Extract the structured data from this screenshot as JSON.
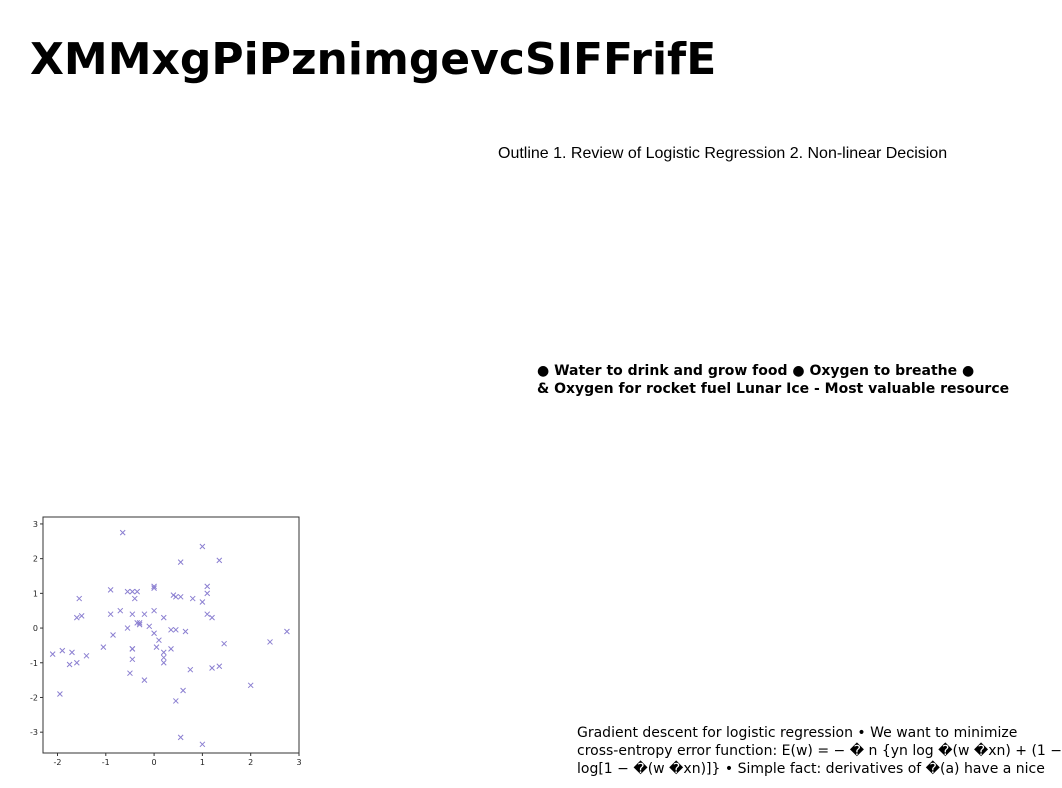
{
  "title": "XMMxgPiPznimgevcSIFFrifE",
  "outline_text": "Outline 1. Review of Logistic Regression 2. Non-linear Decision",
  "lunar_text": {
    "line1": "● Water to drink and grow food ● Oxygen to breathe ●",
    "line2": "& Oxygen for rocket fuel Lunar Ice - Most valuable resource"
  },
  "gradient_text": {
    "line1": "Gradient descent for logistic regression • We want to minimize",
    "line2": "cross-entropy error function: E(w) = − � n {yn log �(w �xn) + (1 −",
    "line3": "log[1 − �(w �xn)]} • Simple fact: derivatives of �(a) have a nice"
  },
  "chart_data": {
    "type": "scatter",
    "marker": "x",
    "color": "#8b7fd1",
    "xlim": [
      -2.3,
      3.0
    ],
    "ylim": [
      -3.6,
      3.2
    ],
    "xticks": [
      "-2",
      "-1",
      "0",
      "1",
      "2",
      "3"
    ],
    "yticks": [
      "3",
      "2",
      "1",
      "0",
      "-1",
      "-2",
      "-3"
    ],
    "x": [
      -0.65,
      1.0,
      0.55,
      1.35,
      -1.55,
      -0.9,
      -0.55,
      -0.45,
      -0.35,
      0.0,
      0.0,
      0.4,
      0.45,
      0.55,
      0.8,
      1.1,
      1.1,
      -0.4,
      -0.7,
      -0.55,
      -0.3,
      0.0,
      0.2,
      1.0,
      1.1,
      1.2,
      -1.6,
      -1.5,
      -0.9,
      -0.45,
      -0.35,
      -0.2,
      -0.1,
      0.0,
      0.35,
      0.45,
      0.65,
      -0.45,
      -0.3,
      -0.85,
      -1.05,
      -1.4,
      -1.7,
      -1.9,
      -2.1,
      -1.6,
      -1.75,
      0.05,
      0.1,
      0.2,
      0.35,
      0.2,
      0.2,
      0.75,
      1.45,
      1.2,
      1.35,
      2.4,
      2.75,
      -0.45,
      -0.45,
      -0.5,
      -0.2,
      -1.95,
      0.6,
      2.0,
      0.45,
      0.55,
      1.0
    ],
    "y": [
      2.75,
      2.35,
      1.9,
      1.95,
      0.85,
      1.1,
      1.05,
      1.05,
      1.05,
      1.2,
      1.15,
      0.95,
      0.9,
      0.9,
      0.85,
      1.0,
      1.2,
      0.85,
      0.5,
      0.0,
      0.15,
      0.5,
      0.3,
      0.75,
      0.4,
      0.3,
      0.3,
      0.35,
      0.4,
      0.4,
      0.15,
      0.4,
      0.05,
      -0.15,
      -0.05,
      -0.05,
      -0.1,
      -0.6,
      0.1,
      -0.2,
      -0.55,
      -0.8,
      -0.7,
      -0.65,
      -0.75,
      -1.0,
      -1.05,
      -0.55,
      -0.35,
      -0.7,
      -0.6,
      -0.85,
      -1.0,
      -1.2,
      -0.45,
      -1.15,
      -1.1,
      -0.4,
      -0.1,
      -0.6,
      -0.9,
      -1.3,
      -1.5,
      -1.9,
      -1.8,
      -1.65,
      -2.1,
      -3.15,
      -3.35
    ]
  }
}
